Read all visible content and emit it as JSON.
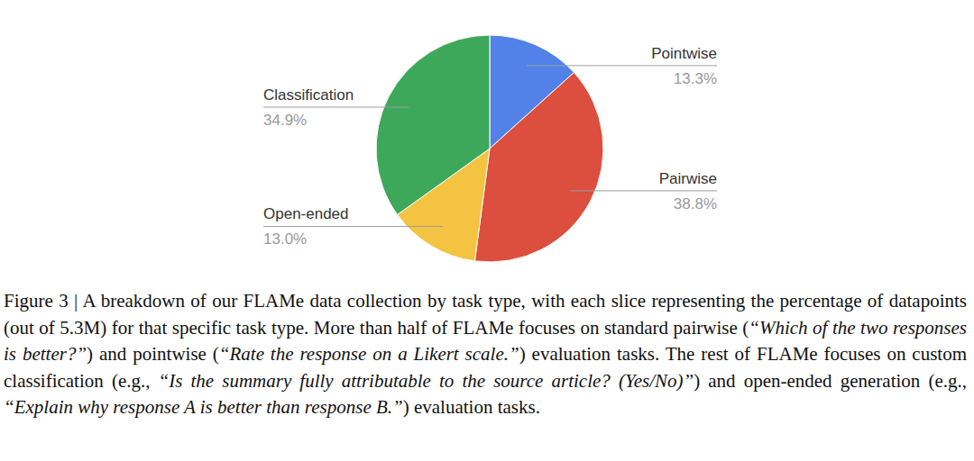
{
  "chart_data": {
    "type": "pie",
    "categories": [
      "Pointwise",
      "Pairwise",
      "Open-ended",
      "Classification"
    ],
    "values": [
      13.3,
      38.8,
      13.0,
      34.9
    ],
    "value_labels": [
      "13.3%",
      "38.8%",
      "13.0%",
      "34.9%"
    ],
    "colors": [
      "#5282e8",
      "#dc4e3d",
      "#f5c342",
      "#3ea85a"
    ],
    "data_labels": true
  },
  "caption": [
    "Figure 3 | A breakdown of our FLAMe data collection by task type, with each slice representing the percentage of datapoints (out of 5.3M) for that specific task type. More than half of FLAMe focuses on standard pairwise (",
    "“Which of the two responses is better?”",
    ") and pointwise (",
    "“Rate the response on a Likert scale.”",
    ") evaluation tasks. The rest of FLAMe focuses on custom classification (e.g., ",
    "“Is the summary fully attributable to the source article? (Yes/No)”",
    ") and open-ended generation (e.g., ",
    "“Explain why response A is better than response B.”",
    ") evaluation tasks."
  ]
}
